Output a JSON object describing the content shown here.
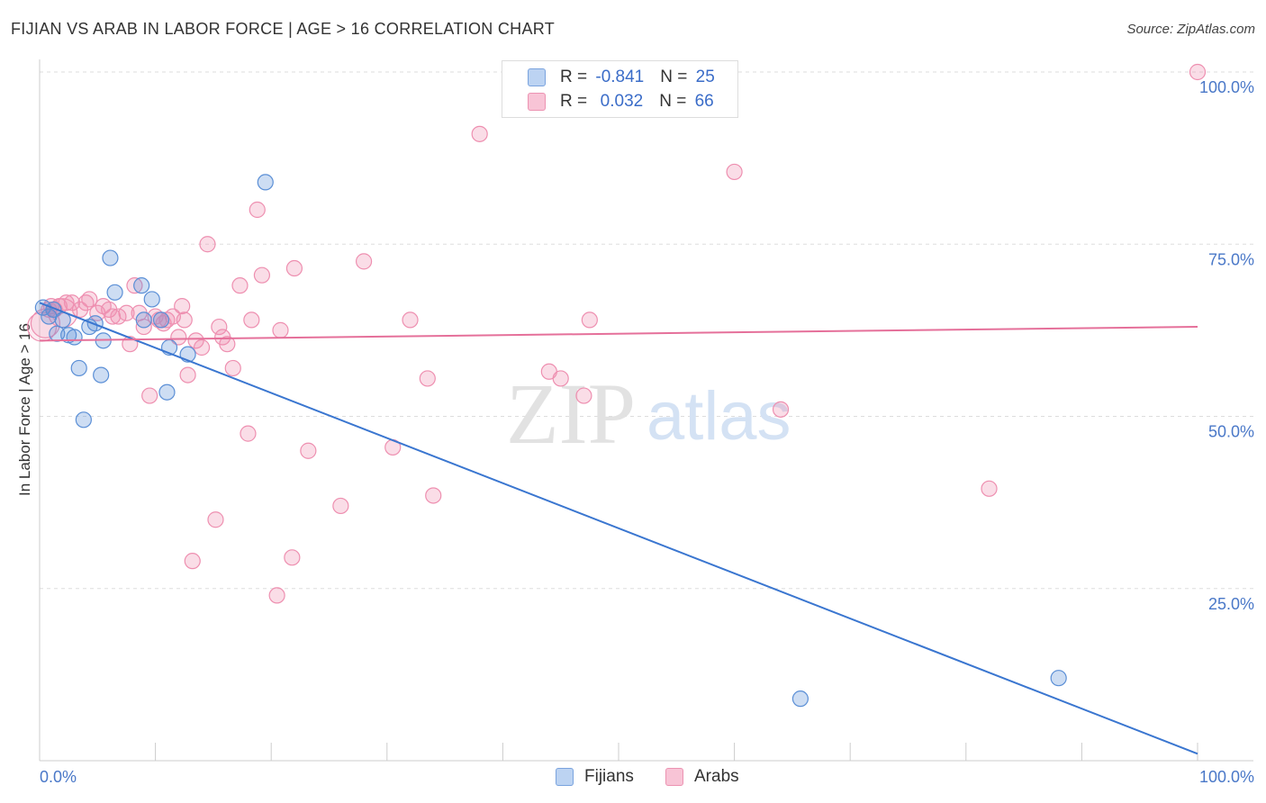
{
  "title": "FIJIAN VS ARAB IN LABOR FORCE | AGE > 16 CORRELATION CHART",
  "source": "Source: ZipAtlas.com",
  "watermark": {
    "zip": "ZIP",
    "atlas": "atlas"
  },
  "legend": {
    "rows": [
      {
        "r_label": "R = ",
        "r_value": "-0.841",
        "n_label": "N = ",
        "n_value": "25"
      },
      {
        "r_label": "R = ",
        "r_value": " 0.032",
        "n_label": "N = ",
        "n_value": "66"
      }
    ]
  },
  "bottom_legend": [
    "Fijians",
    "Arabs"
  ],
  "chart_data": {
    "type": "scatter",
    "title": "FIJIAN VS ARAB IN LABOR FORCE | AGE > 16 CORRELATION CHART",
    "xlabel": "",
    "ylabel": "In Labor Force | Age > 16",
    "xlim": [
      0,
      100
    ],
    "ylim": [
      0,
      100
    ],
    "x_tick_labels": [
      "0.0%",
      "100.0%"
    ],
    "y_tick_labels": [
      "25.0%",
      "50.0%",
      "75.0%",
      "100.0%"
    ],
    "y_ticks": [
      25,
      50,
      75,
      100
    ],
    "grid": true,
    "colors": {
      "fijians": "#5b8fd6",
      "arabs": "#ee8fb0",
      "fijians_line": "#3a76d0",
      "arabs_line": "#e5709a",
      "tick": "#4a78c8"
    },
    "series": [
      {
        "name": "Fijians",
        "trend": {
          "x": [
            0,
            100
          ],
          "y": [
            66.5,
            1.0
          ]
        },
        "points": [
          [
            0.3,
            65.8
          ],
          [
            0.8,
            64.5
          ],
          [
            1.2,
            65.5
          ],
          [
            1.5,
            62.0
          ],
          [
            2.0,
            64.0
          ],
          [
            2.5,
            61.8
          ],
          [
            3.0,
            61.5
          ],
          [
            3.4,
            57.0
          ],
          [
            3.8,
            49.5
          ],
          [
            4.3,
            63.0
          ],
          [
            4.8,
            63.5
          ],
          [
            5.3,
            56.0
          ],
          [
            5.5,
            61.0
          ],
          [
            6.1,
            73.0
          ],
          [
            6.5,
            68.0
          ],
          [
            8.8,
            69.0
          ],
          [
            9.0,
            64.0
          ],
          [
            9.7,
            67.0
          ],
          [
            10.5,
            64.0
          ],
          [
            11.0,
            53.5
          ],
          [
            11.2,
            60.0
          ],
          [
            12.8,
            59.0
          ],
          [
            19.5,
            84.0
          ],
          [
            65.7,
            9.0
          ],
          [
            88.0,
            12.0
          ]
        ]
      },
      {
        "name": "Arabs",
        "trend": {
          "x": [
            0,
            100
          ],
          "y": [
            61.0,
            63.0
          ]
        },
        "points": [
          [
            0.5,
            63.5
          ],
          [
            0.8,
            65.5
          ],
          [
            1.0,
            66.0
          ],
          [
            1.3,
            65.5
          ],
          [
            1.7,
            66.0
          ],
          [
            2.3,
            66.5
          ],
          [
            2.8,
            66.5
          ],
          [
            3.5,
            65.5
          ],
          [
            4.0,
            66.5
          ],
          [
            4.3,
            67.0
          ],
          [
            5.0,
            65.0
          ],
          [
            5.5,
            66.0
          ],
          [
            6.0,
            65.5
          ],
          [
            6.3,
            64.5
          ],
          [
            6.8,
            64.5
          ],
          [
            7.5,
            65.0
          ],
          [
            7.8,
            60.5
          ],
          [
            8.2,
            69.0
          ],
          [
            8.6,
            65.0
          ],
          [
            9.0,
            63.0
          ],
          [
            9.5,
            53.0
          ],
          [
            10.0,
            64.5
          ],
          [
            10.3,
            64.0
          ],
          [
            10.7,
            63.5
          ],
          [
            11.0,
            64.0
          ],
          [
            11.5,
            64.5
          ],
          [
            12.0,
            61.5
          ],
          [
            12.3,
            66.0
          ],
          [
            12.5,
            64.0
          ],
          [
            12.8,
            56.0
          ],
          [
            13.2,
            29.0
          ],
          [
            13.5,
            61.0
          ],
          [
            14.0,
            60.0
          ],
          [
            14.5,
            75.0
          ],
          [
            15.2,
            35.0
          ],
          [
            15.5,
            63.0
          ],
          [
            15.8,
            61.5
          ],
          [
            16.2,
            60.5
          ],
          [
            16.7,
            57.0
          ],
          [
            17.3,
            69.0
          ],
          [
            18.0,
            47.5
          ],
          [
            18.3,
            64.0
          ],
          [
            18.8,
            80.0
          ],
          [
            19.2,
            70.5
          ],
          [
            20.5,
            24.0
          ],
          [
            20.8,
            62.5
          ],
          [
            21.8,
            29.5
          ],
          [
            22.0,
            71.5
          ],
          [
            23.2,
            45.0
          ],
          [
            26.0,
            37.0
          ],
          [
            28.0,
            72.5
          ],
          [
            30.5,
            45.5
          ],
          [
            32.0,
            64.0
          ],
          [
            33.5,
            55.5
          ],
          [
            34.0,
            38.5
          ],
          [
            38.0,
            91.0
          ],
          [
            44.0,
            56.5
          ],
          [
            45.0,
            55.5
          ],
          [
            47.0,
            53.0
          ],
          [
            47.5,
            64.0
          ],
          [
            60.0,
            85.5
          ],
          [
            64.0,
            51.0
          ],
          [
            82.0,
            39.5
          ],
          [
            100.0,
            100.0
          ],
          [
            0.2,
            63.0
          ],
          [
            2.0,
            65.0
          ]
        ]
      }
    ]
  }
}
